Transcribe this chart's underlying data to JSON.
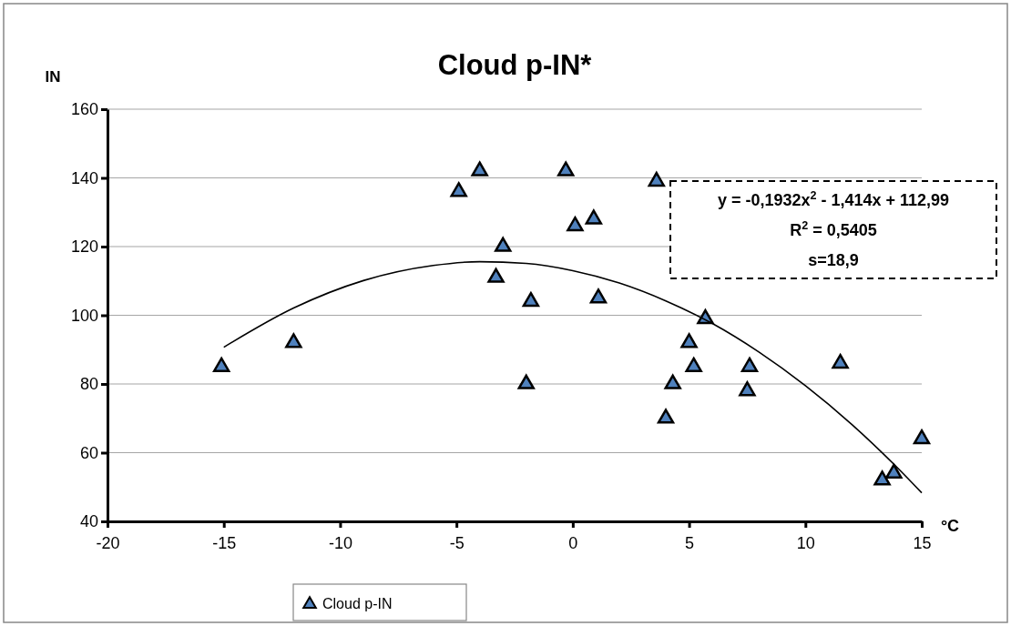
{
  "chart_data": {
    "type": "scatter",
    "title": "Cloud p-IN*",
    "xlabel": "°C",
    "ylabel": "IN",
    "xlim": [
      -20,
      15
    ],
    "xticks": [
      -20,
      -15,
      -10,
      -5,
      0,
      5,
      10,
      15
    ],
    "ylim": [
      40,
      160
    ],
    "yticks": [
      40,
      60,
      80,
      100,
      120,
      140,
      160
    ],
    "grid": "y",
    "legend": "bottom",
    "annotations": [
      "y = -0,1932x$^{2}$ - 1,414x + 112,99",
      "R$^{2}$ = 0,5405",
      "s=18,9"
    ],
    "series": [
      {
        "name": "Cloud p-IN",
        "marker": "triangle",
        "color": "#4f81bd",
        "x": [
          -15.1,
          -12,
          -4.9,
          -4,
          -3,
          -3.3,
          -1.8,
          -2,
          -0.3,
          0.1,
          0.9,
          1.1,
          3.6,
          5.7,
          5,
          5.2,
          7.6,
          7.5,
          4.3,
          4,
          11.5,
          15,
          13.8,
          13.3
        ],
        "values": [
          85,
          92,
          136,
          142,
          120,
          111,
          104,
          80,
          142,
          126,
          128,
          105,
          139,
          99,
          92,
          85,
          85,
          78,
          80,
          70,
          86,
          64,
          54,
          52
        ]
      },
      {
        "type": "line",
        "marker": "none",
        "color": "#000000",
        "x": [
          -15,
          -12,
          -9,
          -6,
          -4,
          -2,
          0,
          2,
          4,
          6,
          8,
          10,
          12,
          14,
          15
        ],
        "values": [
          90.7,
          102.1,
          110.1,
          114.5,
          115.6,
          115.1,
          113,
          109.4,
          104.2,
          97.6,
          89.3,
          79.5,
          68.2,
          55.3,
          48.3
        ]
      }
    ]
  }
}
